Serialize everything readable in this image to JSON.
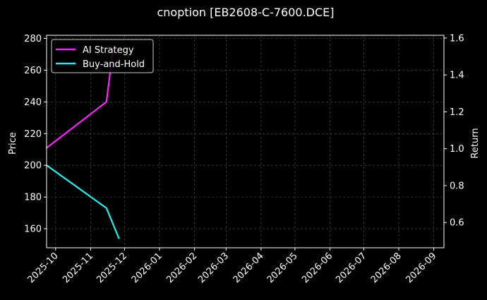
{
  "colors": {
    "background": "#000000",
    "foreground": "#ffffff",
    "grid": "#555555",
    "legend_bg": "#000000",
    "legend_border": "#cccccc"
  },
  "chart_data": {
    "type": "line",
    "title": "cnoption [EB2608-C-7600.DCE]",
    "xlabel": "",
    "ylabel": "Price",
    "y2label": "Return",
    "grid": true,
    "legend_position": "top-left",
    "x_ticks": [
      "2025-10",
      "2025-11",
      "2025-12",
      "2026-01",
      "2026-02",
      "2026-03",
      "2026-04",
      "2026-05",
      "2026-06",
      "2026-07",
      "2026-08",
      "2026-09"
    ],
    "y_ticks": [
      160,
      180,
      200,
      220,
      240,
      260,
      280
    ],
    "y2_ticks": [
      "0.6",
      "0.8",
      "1.0",
      "1.2",
      "1.4",
      "1.6"
    ],
    "xlim": [
      "2025-09-23",
      "2026-09-10"
    ],
    "ylim": [
      148,
      282
    ],
    "y2lim": [
      0.463,
      1.615
    ],
    "series": [
      {
        "name": "AI Strategy",
        "color": "#ff22ff",
        "axis": "left",
        "points": [
          {
            "x": "2025-09-23",
            "y": 211
          },
          {
            "x": "2025-11-15",
            "y": 240
          },
          {
            "x": "2025-11-21",
            "y": 274
          }
        ]
      },
      {
        "name": "Buy-and-Hold",
        "color": "#22eeee",
        "axis": "left",
        "points": [
          {
            "x": "2025-09-23",
            "y": 200
          },
          {
            "x": "2025-11-15",
            "y": 173
          },
          {
            "x": "2025-11-26",
            "y": 154
          }
        ]
      }
    ]
  }
}
